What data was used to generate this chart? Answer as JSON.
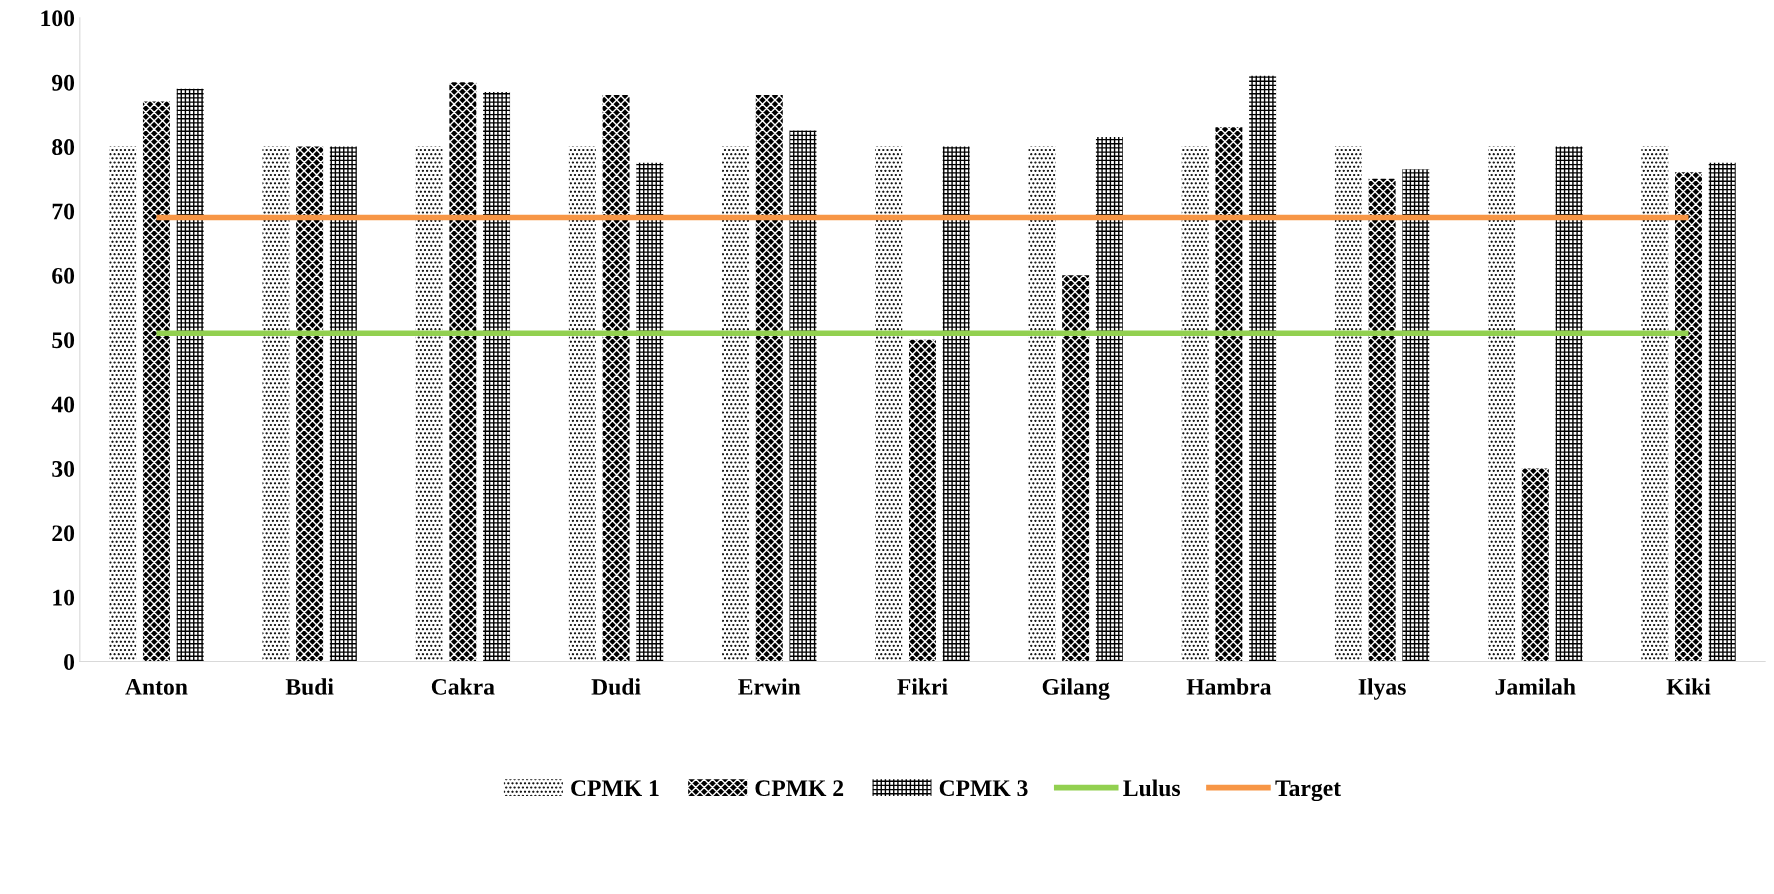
{
  "chart_data": {
    "type": "bar",
    "categories": [
      "Anton",
      "Budi",
      "Cakra",
      "Dudi",
      "Erwin",
      "Fikri",
      "Gilang",
      "Hambra",
      "Ilyas",
      "Jamilah",
      "Kiki"
    ],
    "series": [
      {
        "name": "CPMK 1",
        "color": "#000000",
        "values": [
          80,
          80,
          80,
          80,
          80,
          80,
          80,
          80,
          80,
          80,
          80
        ]
      },
      {
        "name": "CPMK 2",
        "color": "#000000",
        "values": [
          87,
          80,
          90,
          88,
          88,
          50,
          60,
          83,
          75,
          30,
          76
        ]
      },
      {
        "name": "CPMK 3",
        "color": "#000000",
        "values": [
          89,
          80,
          88.5,
          77.5,
          82.5,
          80,
          81.5,
          91,
          76.5,
          80,
          77.5
        ]
      },
      {
        "name": "Lulus",
        "type": "line",
        "color": "#92d050",
        "values": [
          51,
          51,
          51,
          51,
          51,
          51,
          51,
          51,
          51,
          51,
          51
        ]
      },
      {
        "name": "Target",
        "type": "line",
        "color": "#f79646",
        "values": [
          69,
          69,
          69,
          69,
          69,
          69,
          69,
          69,
          69,
          69,
          69
        ]
      }
    ],
    "ylim": [
      0,
      100
    ],
    "yticks": [
      0,
      10,
      20,
      30,
      40,
      50,
      60,
      70,
      80,
      90,
      100
    ],
    "grid": false,
    "legend": "bottom"
  }
}
